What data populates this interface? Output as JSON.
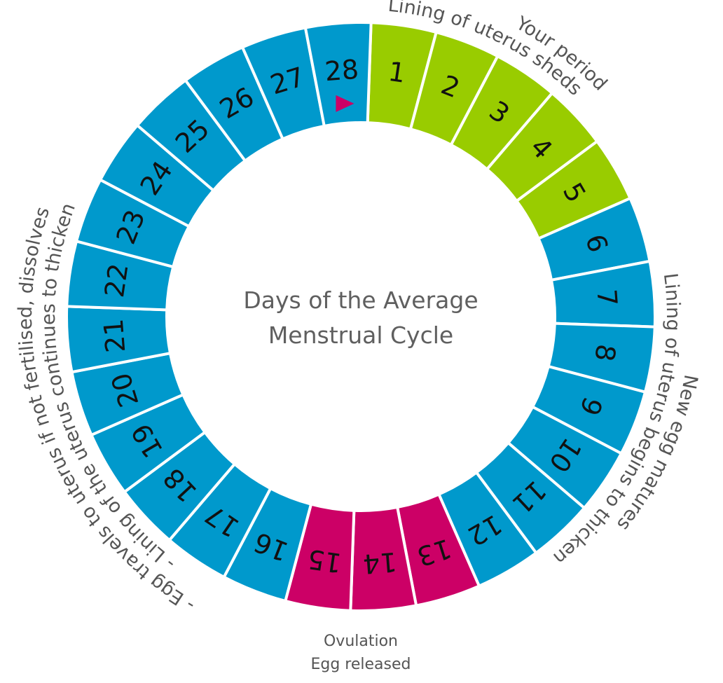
{
  "title": {
    "line1": "Days of the Average",
    "line2": "Menstrual Cycle"
  },
  "colors": {
    "period": "#99CC00",
    "normal": "#0099CC",
    "ovulation": "#CC0066",
    "marker": "#CC0066",
    "divider": "#FFFFFF",
    "label_text": "#555555"
  },
  "annotations": {
    "period": {
      "outer": "Your period",
      "inner": "Lining of uterus sheds"
    },
    "follicular": {
      "outer": "New egg matures",
      "inner": "Lining of uterus begins to thicken"
    },
    "ovulation": {
      "line1": "Ovulation",
      "line2": "Egg released"
    },
    "luteal": {
      "outer": "- Egg travels to uterus if not fertilised, dissolves",
      "inner": "- Lining of the uterus continues to thicken"
    }
  },
  "marker": {
    "day": 28,
    "icon": "triangle-right-icon"
  },
  "chart_data": {
    "type": "pie",
    "subtype": "donut",
    "title": "Days of the Average Menstrual Cycle",
    "categories": [
      "1",
      "2",
      "3",
      "4",
      "5",
      "6",
      "7",
      "8",
      "9",
      "10",
      "11",
      "12",
      "13",
      "14",
      "15",
      "16",
      "17",
      "18",
      "19",
      "20",
      "21",
      "22",
      "23",
      "24",
      "25",
      "26",
      "27",
      "28"
    ],
    "values": [
      1,
      1,
      1,
      1,
      1,
      1,
      1,
      1,
      1,
      1,
      1,
      1,
      1,
      1,
      1,
      1,
      1,
      1,
      1,
      1,
      1,
      1,
      1,
      1,
      1,
      1,
      1,
      1
    ],
    "phases": [
      "period",
      "period",
      "period",
      "period",
      "period",
      "normal",
      "normal",
      "normal",
      "normal",
      "normal",
      "normal",
      "normal",
      "ovulation",
      "ovulation",
      "ovulation",
      "normal",
      "normal",
      "normal",
      "normal",
      "normal",
      "normal",
      "normal",
      "normal",
      "normal",
      "normal",
      "normal",
      "normal",
      "normal"
    ],
    "legend": [
      {
        "days": "1-5",
        "phase": "period",
        "label": "Your period / Lining of uterus sheds"
      },
      {
        "days": "6-12",
        "phase": "normal",
        "label": "New egg matures / Lining of uterus begins to thicken"
      },
      {
        "days": "13-15",
        "phase": "ovulation",
        "label": "Ovulation / Egg released"
      },
      {
        "days": "16-28",
        "phase": "normal",
        "label": "- Egg travels to uterus if not fertilised, dissolves / - Lining of the uterus continues to thicken"
      }
    ],
    "start_angle_deg": 2,
    "direction": "clockwise"
  }
}
